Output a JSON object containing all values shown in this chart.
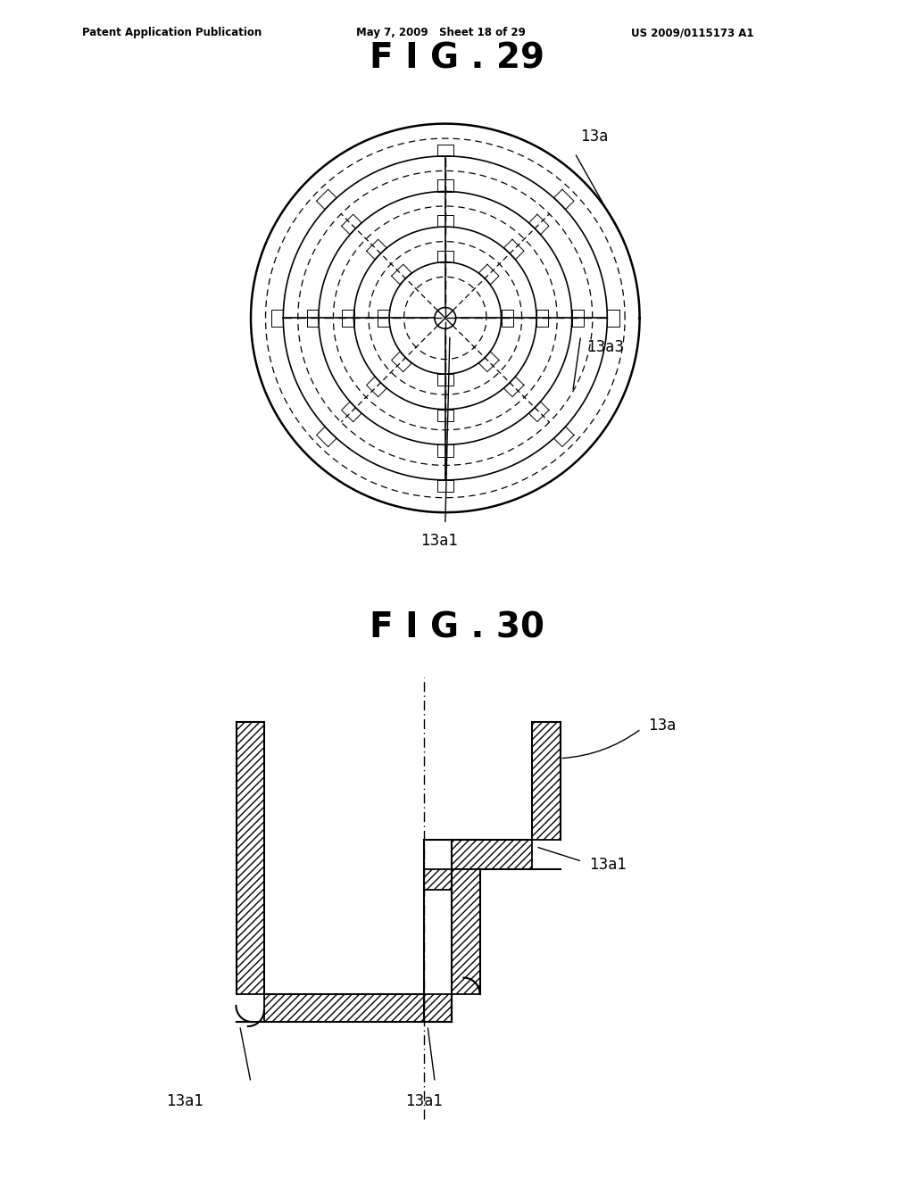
{
  "fig_title1": "F I G . 29",
  "fig_title2": "F I G . 30",
  "header_left": "Patent Application Publication",
  "header_mid": "May 7, 2009   Sheet 18 of 29",
  "header_right": "US 2009/0115173 A1",
  "bg_color": "#ffffff",
  "line_color": "#000000",
  "label_13a": "13a",
  "label_13a1": "13a1",
  "label_13a3": "13a3"
}
